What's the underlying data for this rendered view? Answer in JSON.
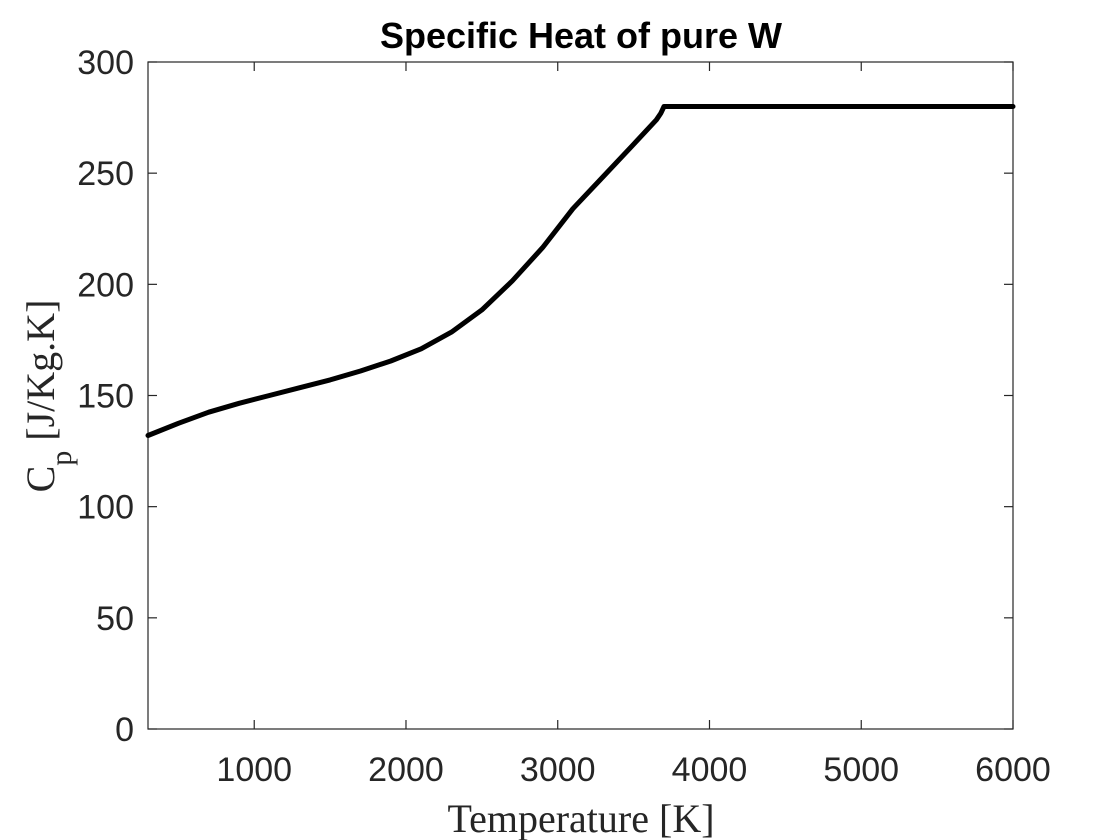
{
  "chart_data": {
    "type": "line",
    "title": "Specific Heat of pure W",
    "xlabel": "Temperature [K]",
    "ylabel_main": "C",
    "ylabel_sub": "p",
    "ylabel_units": " [J/Kg.K]",
    "xlim": [
      300,
      6000
    ],
    "ylim": [
      0,
      300
    ],
    "xticks": [
      1000,
      2000,
      3000,
      4000,
      5000,
      6000
    ],
    "yticks": [
      0,
      50,
      100,
      150,
      200,
      250,
      300
    ],
    "xtick_labels": [
      "1000",
      "2000",
      "3000",
      "4000",
      "5000",
      "6000"
    ],
    "ytick_labels": [
      "0",
      "50",
      "100",
      "150",
      "200",
      "250",
      "300"
    ],
    "grid": false,
    "series": [
      {
        "name": "Cp",
        "color": "#000000",
        "x": [
          300,
          500,
          700,
          900,
          1100,
          1300,
          1500,
          1700,
          1900,
          2100,
          2300,
          2500,
          2700,
          2900,
          3100,
          3300,
          3500,
          3650,
          3680,
          3700,
          4000,
          4500,
          5000,
          5500,
          6000
        ],
        "y": [
          132,
          137.5,
          142.5,
          146.5,
          150,
          153.5,
          157,
          161,
          165.5,
          171,
          178.5,
          188.5,
          201.5,
          216.5,
          234,
          248.5,
          263,
          274,
          277,
          280,
          280,
          280,
          280,
          280,
          280
        ]
      }
    ]
  }
}
